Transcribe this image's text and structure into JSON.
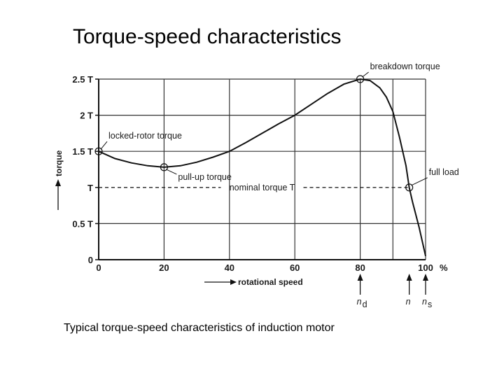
{
  "slide": {
    "title": "Torque-speed characteristics",
    "caption": "Typical torque-speed characteristics of induction motor"
  },
  "chart_data": {
    "type": "line",
    "x_label": "rotational speed",
    "y_label": "torque",
    "x_unit": "%",
    "xlim": [
      0,
      100
    ],
    "ylim": [
      0,
      2.5
    ],
    "x_ticks": [
      {
        "value": 0,
        "label": "0"
      },
      {
        "value": 20,
        "label": "20"
      },
      {
        "value": 40,
        "label": "40"
      },
      {
        "value": 60,
        "label": "60"
      },
      {
        "value": 80,
        "label": "80"
      },
      {
        "value": 100,
        "label": "100"
      }
    ],
    "y_ticks": [
      {
        "value": 0,
        "label": "0"
      },
      {
        "value": 0.5,
        "label": "0.5 T"
      },
      {
        "value": 1,
        "label": "T"
      },
      {
        "value": 1.5,
        "label": "1.5 T"
      },
      {
        "value": 2,
        "label": "2 T"
      },
      {
        "value": 2.5,
        "label": "2.5 T"
      }
    ],
    "extra_vgrid": [
      90
    ],
    "grid": true,
    "series": [
      {
        "x": [
          0,
          5,
          10,
          15,
          20,
          25,
          30,
          35,
          40,
          45,
          50,
          55,
          60,
          65,
          70,
          75,
          80,
          83,
          86,
          88,
          90,
          92,
          94,
          95,
          96,
          98,
          100
        ],
        "y": [
          1.5,
          1.4,
          1.34,
          1.3,
          1.28,
          1.3,
          1.35,
          1.42,
          1.5,
          1.62,
          1.75,
          1.88,
          2.0,
          2.15,
          2.3,
          2.43,
          2.5,
          2.48,
          2.38,
          2.25,
          2.05,
          1.7,
          1.3,
          1.0,
          0.8,
          0.45,
          0.05
        ]
      }
    ],
    "annotations": [
      {
        "text": "locked-rotor torque",
        "x": 0,
        "y": 1.5,
        "marker": true
      },
      {
        "text": "pull-up torque",
        "x": 20,
        "y": 1.28,
        "marker": true
      },
      {
        "text": "breakdown torque",
        "x": 80,
        "y": 2.5,
        "marker": true
      },
      {
        "text": "full load",
        "x": 95,
        "y": 1.0,
        "marker": true
      }
    ],
    "nominal_line": {
      "text": "nominal torque T",
      "y": 1.0,
      "x_end": 95
    },
    "speed_markers": [
      {
        "label": "n",
        "sub": "d",
        "x": 80
      },
      {
        "label": "n",
        "sub": "",
        "x": 95
      },
      {
        "label": "n",
        "sub": "s",
        "x": 100
      }
    ]
  }
}
